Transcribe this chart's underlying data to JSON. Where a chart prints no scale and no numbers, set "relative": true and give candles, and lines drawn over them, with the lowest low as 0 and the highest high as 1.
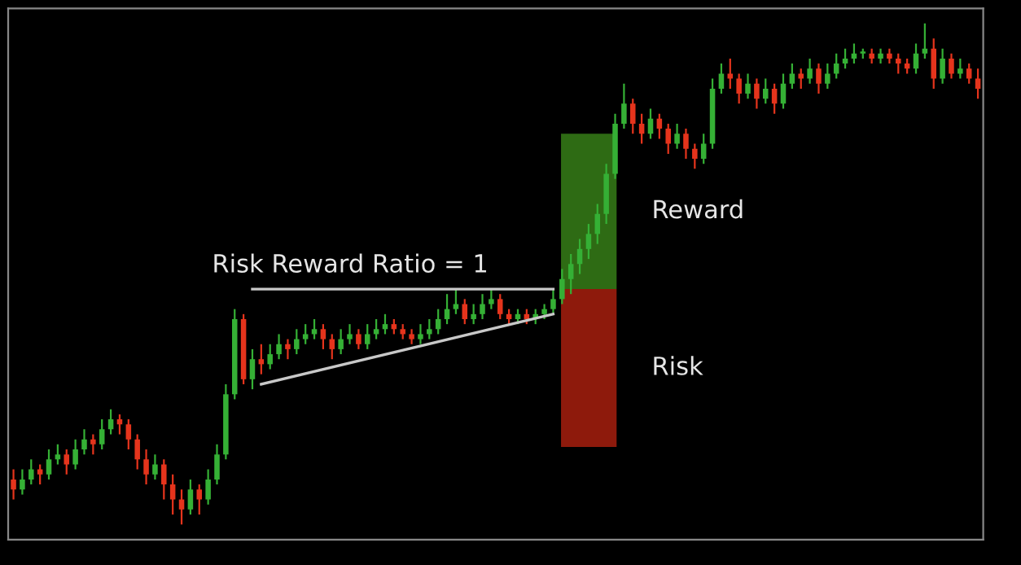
{
  "chart_data": {
    "type": "candlestick",
    "relative": true,
    "categories": [
      null,
      null,
      null,
      null,
      null,
      null,
      null,
      null,
      null,
      null,
      null,
      null,
      null,
      null,
      null,
      null,
      null,
      null,
      null,
      null,
      null,
      null,
      null,
      null,
      null,
      null,
      null,
      null,
      null,
      null,
      null,
      null,
      null,
      null,
      null,
      null,
      null,
      null,
      null,
      null,
      null,
      null,
      null,
      null,
      null,
      null,
      null,
      null,
      null,
      null,
      null,
      null,
      null,
      null,
      null,
      null,
      null,
      null,
      null,
      null,
      null,
      null,
      null,
      null,
      null,
      null,
      null,
      null,
      null,
      null,
      null,
      null,
      null,
      null,
      null,
      null,
      null,
      null,
      null,
      null,
      null,
      null,
      null,
      null,
      null,
      null,
      null,
      null,
      null,
      null,
      null,
      null,
      null,
      null,
      null,
      null,
      null,
      null,
      null,
      null,
      null,
      null,
      null,
      null,
      null,
      null,
      null,
      null,
      null,
      null
    ],
    "colors": [
      "#e5341c",
      "#35b035",
      "#35b035",
      "#e5341c",
      "#35b035",
      "#35b035",
      "#e5341c",
      "#35b035",
      "#35b035",
      "#e5341c",
      "#35b035",
      "#35b035",
      "#e5341c",
      "#e5341c",
      "#e5341c",
      "#e5341c",
      "#35b035",
      "#e5341c",
      "#e5341c",
      "#e5341c",
      "#35b035",
      "#e5341c",
      "#35b035",
      "#35b035",
      "#35b035",
      "#35b035",
      "#e5341c",
      "#35b035",
      "#e5341c",
      "#35b035",
      "#35b035",
      "#e5341c",
      "#35b035",
      "#35b035",
      "#35b035",
      "#e5341c",
      "#e5341c",
      "#35b035",
      "#35b035",
      "#e5341c",
      "#35b035",
      "#35b035",
      "#35b035",
      "#e5341c",
      "#e5341c",
      "#e5341c",
      "#35b035",
      "#35b035",
      "#35b035",
      "#35b035",
      "#35b035",
      "#e5341c",
      "#35b035",
      "#35b035",
      "#35b035",
      "#e5341c",
      "#e5341c",
      "#35b035",
      "#e5341c",
      "#35b035",
      "#35b035",
      "#35b035",
      "#35b035",
      "#35b035",
      "#35b035",
      "#35b035",
      "#35b035",
      "#35b035",
      "#35b035",
      "#35b035",
      "#e5341c",
      "#e5341c",
      "#35b035",
      "#e5341c",
      "#e5341c",
      "#35b035",
      "#e5341c",
      "#e5341c",
      "#35b035",
      "#35b035",
      "#35b035",
      "#e5341c",
      "#e5341c",
      "#35b035",
      "#e5341c",
      "#35b035",
      "#e5341c",
      "#35b035",
      "#35b035",
      "#e5341c",
      "#35b035",
      "#e5341c",
      "#35b035",
      "#35b035",
      "#35b035",
      "#35b035",
      "#35b035",
      "#e5341c",
      "#35b035",
      "#e5341c",
      "#e5341c",
      "#e5341c",
      "#35b035",
      "#35b035",
      "#e5341c",
      "#35b035",
      "#e5341c",
      "#35b035",
      "#e5341c",
      "#e5341c"
    ],
    "ohlc": [
      [
        0.09,
        0.11,
        0.05,
        0.07
      ],
      [
        0.07,
        0.11,
        0.06,
        0.09
      ],
      [
        0.09,
        0.13,
        0.08,
        0.11
      ],
      [
        0.11,
        0.12,
        0.08,
        0.1
      ],
      [
        0.1,
        0.15,
        0.09,
        0.13
      ],
      [
        0.13,
        0.16,
        0.12,
        0.14
      ],
      [
        0.14,
        0.15,
        0.1,
        0.12
      ],
      [
        0.12,
        0.17,
        0.11,
        0.15
      ],
      [
        0.15,
        0.19,
        0.14,
        0.17
      ],
      [
        0.17,
        0.18,
        0.14,
        0.16
      ],
      [
        0.16,
        0.21,
        0.15,
        0.19
      ],
      [
        0.19,
        0.23,
        0.18,
        0.21
      ],
      [
        0.21,
        0.22,
        0.18,
        0.2
      ],
      [
        0.2,
        0.21,
        0.15,
        0.17
      ],
      [
        0.17,
        0.18,
        0.11,
        0.13
      ],
      [
        0.13,
        0.15,
        0.08,
        0.1
      ],
      [
        0.1,
        0.14,
        0.09,
        0.12
      ],
      [
        0.12,
        0.13,
        0.05,
        0.08
      ],
      [
        0.08,
        0.1,
        0.02,
        0.05
      ],
      [
        0.05,
        0.07,
        0,
        0.03
      ],
      [
        0.03,
        0.09,
        0.02,
        0.07
      ],
      [
        0.07,
        0.08,
        0.02,
        0.05
      ],
      [
        0.05,
        0.11,
        0.04,
        0.09
      ],
      [
        0.09,
        0.16,
        0.08,
        0.14
      ],
      [
        0.14,
        0.28,
        0.13,
        0.26
      ],
      [
        0.26,
        0.43,
        0.25,
        0.41
      ],
      [
        0.41,
        0.42,
        0.28,
        0.29
      ],
      [
        0.29,
        0.35,
        0.27,
        0.33
      ],
      [
        0.33,
        0.36,
        0.3,
        0.32
      ],
      [
        0.32,
        0.36,
        0.31,
        0.34
      ],
      [
        0.34,
        0.38,
        0.33,
        0.36
      ],
      [
        0.36,
        0.37,
        0.33,
        0.35
      ],
      [
        0.35,
        0.39,
        0.34,
        0.37
      ],
      [
        0.37,
        0.4,
        0.36,
        0.38
      ],
      [
        0.38,
        0.41,
        0.37,
        0.39
      ],
      [
        0.39,
        0.4,
        0.35,
        0.37
      ],
      [
        0.37,
        0.38,
        0.33,
        0.35
      ],
      [
        0.35,
        0.39,
        0.34,
        0.37
      ],
      [
        0.37,
        0.4,
        0.36,
        0.38
      ],
      [
        0.38,
        0.39,
        0.35,
        0.36
      ],
      [
        0.36,
        0.4,
        0.35,
        0.38
      ],
      [
        0.38,
        0.41,
        0.37,
        0.39
      ],
      [
        0.39,
        0.42,
        0.38,
        0.4
      ],
      [
        0.4,
        0.41,
        0.38,
        0.39
      ],
      [
        0.39,
        0.4,
        0.37,
        0.38
      ],
      [
        0.38,
        0.39,
        0.36,
        0.37
      ],
      [
        0.37,
        0.4,
        0.36,
        0.38
      ],
      [
        0.38,
        0.41,
        0.37,
        0.39
      ],
      [
        0.39,
        0.43,
        0.38,
        0.41
      ],
      [
        0.41,
        0.46,
        0.4,
        0.43
      ],
      [
        0.43,
        0.47,
        0.42,
        0.44
      ],
      [
        0.44,
        0.45,
        0.4,
        0.41
      ],
      [
        0.41,
        0.44,
        0.4,
        0.42
      ],
      [
        0.42,
        0.46,
        0.41,
        0.44
      ],
      [
        0.44,
        0.47,
        0.43,
        0.45
      ],
      [
        0.45,
        0.46,
        0.41,
        0.42
      ],
      [
        0.42,
        0.43,
        0.4,
        0.41
      ],
      [
        0.41,
        0.43,
        0.4,
        0.42
      ],
      [
        0.42,
        0.43,
        0.4,
        0.41
      ],
      [
        0.41,
        0.43,
        0.4,
        0.42
      ],
      [
        0.42,
        0.44,
        0.41,
        0.43
      ],
      [
        0.43,
        0.47,
        0.42,
        0.45
      ],
      [
        0.45,
        0.51,
        0.44,
        0.49
      ],
      [
        0.49,
        0.54,
        0.46,
        0.52
      ],
      [
        0.52,
        0.57,
        0.5,
        0.55
      ],
      [
        0.55,
        0.6,
        0.53,
        0.58
      ],
      [
        0.58,
        0.64,
        0.56,
        0.62
      ],
      [
        0.62,
        0.72,
        0.6,
        0.7
      ],
      [
        0.7,
        0.82,
        0.69,
        0.8
      ],
      [
        0.8,
        0.88,
        0.79,
        0.84
      ],
      [
        0.84,
        0.85,
        0.78,
        0.8
      ],
      [
        0.8,
        0.82,
        0.76,
        0.78
      ],
      [
        0.78,
        0.83,
        0.77,
        0.81
      ],
      [
        0.81,
        0.82,
        0.77,
        0.79
      ],
      [
        0.79,
        0.8,
        0.74,
        0.76
      ],
      [
        0.76,
        0.8,
        0.75,
        0.78
      ],
      [
        0.78,
        0.79,
        0.73,
        0.75
      ],
      [
        0.75,
        0.76,
        0.71,
        0.73
      ],
      [
        0.73,
        0.78,
        0.72,
        0.76
      ],
      [
        0.76,
        0.89,
        0.75,
        0.87
      ],
      [
        0.87,
        0.92,
        0.86,
        0.9
      ],
      [
        0.9,
        0.93,
        0.87,
        0.89
      ],
      [
        0.89,
        0.9,
        0.84,
        0.86
      ],
      [
        0.86,
        0.9,
        0.85,
        0.88
      ],
      [
        0.88,
        0.89,
        0.83,
        0.85
      ],
      [
        0.85,
        0.89,
        0.84,
        0.87
      ],
      [
        0.87,
        0.88,
        0.82,
        0.84
      ],
      [
        0.84,
        0.9,
        0.83,
        0.88
      ],
      [
        0.88,
        0.92,
        0.87,
        0.9
      ],
      [
        0.9,
        0.91,
        0.87,
        0.89
      ],
      [
        0.89,
        0.93,
        0.88,
        0.91
      ],
      [
        0.91,
        0.92,
        0.86,
        0.88
      ],
      [
        0.88,
        0.92,
        0.87,
        0.9
      ],
      [
        0.9,
        0.94,
        0.89,
        0.92
      ],
      [
        0.92,
        0.95,
        0.91,
        0.93
      ],
      [
        0.93,
        0.96,
        0.92,
        0.94
      ],
      [
        0.94,
        0.95,
        0.93,
        0.94
      ],
      [
        0.94,
        0.95,
        0.92,
        0.93
      ],
      [
        0.93,
        0.95,
        0.92,
        0.94
      ],
      [
        0.94,
        0.95,
        0.92,
        0.93
      ],
      [
        0.93,
        0.94,
        0.9,
        0.92
      ],
      [
        0.92,
        0.93,
        0.9,
        0.91
      ],
      [
        0.91,
        0.96,
        0.9,
        0.94
      ],
      [
        0.94,
        1,
        0.93,
        0.95
      ],
      [
        0.95,
        0.97,
        0.87,
        0.89
      ],
      [
        0.89,
        0.95,
        0.88,
        0.93
      ],
      [
        0.93,
        0.94,
        0.89,
        0.9
      ],
      [
        0.9,
        0.93,
        0.89,
        0.91
      ],
      [
        0.91,
        0.92,
        0.88,
        0.89
      ],
      [
        0.89,
        0.91,
        0.85,
        0.87
      ]
    ],
    "series": [
      {
        "type": "line",
        "color": "#c8c8c8",
        "values": [
          null,
          null,
          null,
          null,
          null,
          null,
          null,
          null,
          null,
          null,
          null,
          null,
          null,
          null,
          null,
          null,
          null,
          null,
          null,
          null,
          null,
          null,
          null,
          null,
          null,
          null,
          null,
          0.47,
          null,
          null,
          null,
          null,
          null,
          null,
          null,
          null,
          null,
          null,
          null,
          null,
          null,
          null,
          null,
          null,
          null,
          null,
          null,
          null,
          null,
          null,
          null,
          null,
          null,
          null,
          null,
          null,
          null,
          null,
          null,
          null,
          null,
          0.47,
          null,
          null,
          null,
          null,
          null,
          null,
          null,
          null,
          null,
          null,
          null,
          null,
          null,
          null,
          null,
          null,
          null,
          null,
          null,
          null,
          null,
          null,
          null,
          null,
          null,
          null,
          null,
          null,
          null,
          null,
          null,
          null,
          null,
          null,
          null,
          null,
          null,
          null,
          null,
          null,
          null,
          null,
          null,
          null,
          null,
          null,
          null,
          null
        ]
      },
      {
        "type": "line",
        "color": "#c8c8c8",
        "values": [
          null,
          null,
          null,
          null,
          null,
          null,
          null,
          null,
          null,
          null,
          null,
          null,
          null,
          null,
          null,
          null,
          null,
          null,
          null,
          null,
          null,
          null,
          null,
          null,
          null,
          null,
          null,
          null,
          0.28,
          null,
          null,
          null,
          null,
          null,
          null,
          null,
          null,
          null,
          null,
          null,
          null,
          null,
          null,
          null,
          null,
          null,
          null,
          null,
          null,
          null,
          null,
          null,
          null,
          null,
          null,
          null,
          null,
          null,
          null,
          null,
          null,
          0.42,
          null,
          null,
          null,
          null,
          null,
          null,
          null,
          null,
          null,
          null,
          null,
          null,
          null,
          null,
          null,
          null,
          null,
          null,
          null,
          null,
          null,
          null,
          null,
          null,
          null,
          null,
          null,
          null,
          null,
          null,
          null,
          null,
          null,
          null,
          null,
          null,
          null,
          null,
          null,
          null,
          null,
          null,
          null,
          null,
          null,
          null,
          null,
          null
        ]
      }
    ],
    "bands": [
      {
        "axis": "y",
        "from": 0.47,
        "to": 0.78,
        "label": "Reward",
        "color": "#2e6b14"
      },
      {
        "axis": "y",
        "from": 0.155,
        "to": 0.47,
        "label": "Risk",
        "color": "#8e1a0c"
      }
    ],
    "annotations": [
      "Risk Reward Ratio = 1"
    ]
  }
}
